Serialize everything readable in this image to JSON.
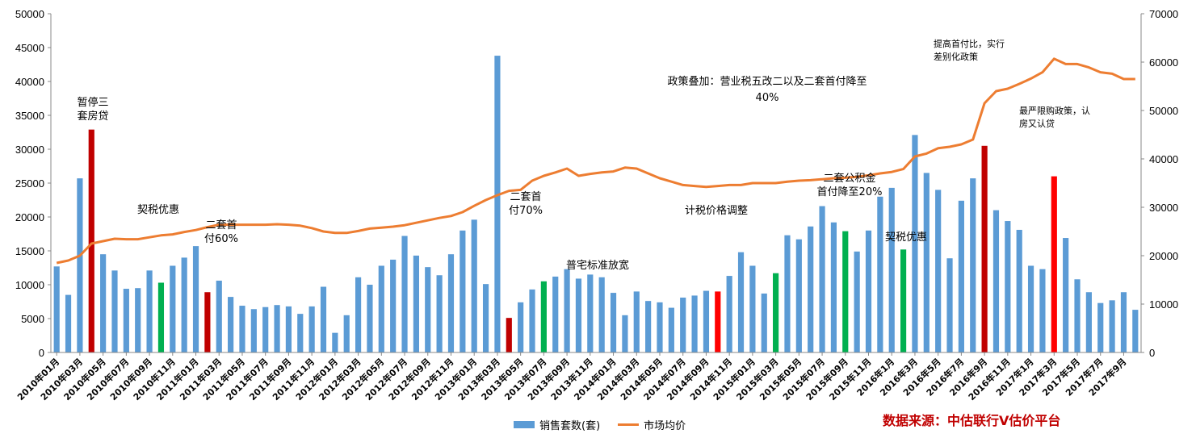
{
  "chart_data": {
    "type": "bar+line",
    "colors": {
      "bar": "#5b9bd5",
      "green": "#00b050",
      "red_dark": "#c00000",
      "red": "#ff0000",
      "line": "#ed7d31"
    },
    "y_left": {
      "min": 0,
      "max": 50000,
      "ticks": [
        "0",
        "5000",
        "10000",
        "15000",
        "20000",
        "25000",
        "30000",
        "35000",
        "40000",
        "45000",
        "50000"
      ]
    },
    "y_right": {
      "min": 0,
      "max": 70000,
      "ticks": [
        "0",
        "10000",
        "20000",
        "30000",
        "40000",
        "50000",
        "60000",
        "70000"
      ]
    },
    "x_tick_labels": [
      "2010年01月",
      "2010年03月",
      "2010年05月",
      "2010年07月",
      "2010年09月",
      "2010年11月",
      "2011年01月",
      "2011年03月",
      "2011年05月",
      "2011年07月",
      "2011年09月",
      "2011年11月",
      "2012年01月",
      "2012年03月",
      "2012年05月",
      "2012年07月",
      "2012年09月",
      "2012年11月",
      "2013年01月",
      "2013年03月",
      "2013年05月",
      "2013年07月",
      "2013年09月",
      "2013年11月",
      "2014年01月",
      "2014年03月",
      "2014年05月",
      "2014年07月",
      "2014年09月",
      "2014年11月",
      "2015年01月",
      "2015年03月",
      "2015年05月",
      "2015年07月",
      "2015年09月",
      "2015年11月",
      "2016年1月",
      "2016年3月",
      "2016年5月",
      "2016年7月",
      "2016年9月",
      "2016年11月",
      "2017年1月",
      "2017年3月",
      "2017年5月",
      "2017年7月",
      "2017年9月"
    ],
    "series": [
      {
        "name": "销售套数(套)",
        "axis": "left",
        "type": "bar",
        "values": [
          12700,
          8500,
          25700,
          32900,
          14500,
          12100,
          9400,
          9500,
          12100,
          10300,
          12800,
          14000,
          15700,
          8900,
          10600,
          8200,
          6900,
          6400,
          6700,
          7000,
          6800,
          5700,
          6800,
          9700,
          2900,
          5500,
          11100,
          10000,
          12800,
          13700,
          17200,
          14300,
          12600,
          11400,
          14500,
          18000,
          19600,
          10100,
          43800,
          5100,
          7400,
          9300,
          10500,
          11200,
          12300,
          10900,
          11500,
          11100,
          8800,
          5500,
          9000,
          7600,
          7400,
          6600,
          8100,
          8400,
          9100,
          9000,
          11300,
          14800,
          12800,
          8700,
          11700,
          17300,
          16700,
          18600,
          21600,
          19200,
          17900,
          14900,
          18000,
          23000,
          24300,
          15200,
          32100,
          26500,
          24000,
          13900,
          22400,
          25700,
          30500,
          21000,
          19400,
          18100,
          12800,
          12300,
          26000,
          16900,
          10800,
          8900,
          7300,
          7700,
          8900,
          6300
        ],
        "colors": {
          "3": "red_dark",
          "9": "green",
          "13": "red_dark",
          "39": "red_dark",
          "42": "green",
          "57": "red",
          "62": "green",
          "68": "green",
          "73": "green",
          "80": "red_dark",
          "86": "red"
        }
      },
      {
        "name": "市场均价",
        "axis": "right",
        "type": "line",
        "values": [
          18500,
          19000,
          20000,
          22500,
          23000,
          23500,
          23400,
          23400,
          23800,
          24200,
          24400,
          24900,
          25300,
          25900,
          26400,
          26400,
          26400,
          26400,
          26400,
          26500,
          26400,
          26200,
          25700,
          25000,
          24700,
          24700,
          25100,
          25600,
          25800,
          26000,
          26300,
          26800,
          27300,
          27800,
          28200,
          29000,
          30300,
          31500,
          32500,
          33400,
          33600,
          35500,
          36500,
          37200,
          38000,
          36500,
          36900,
          37200,
          37400,
          38200,
          38000,
          37000,
          36000,
          35300,
          34600,
          34400,
          34200,
          34400,
          34600,
          34600,
          35000,
          35000,
          35000,
          35300,
          35500,
          35600,
          35800,
          36000,
          36100,
          36300,
          36600,
          37000,
          37300,
          37900,
          40500,
          41100,
          42200,
          42500,
          43000,
          44000,
          51500,
          54000,
          54500,
          55500,
          56600,
          57900,
          60700,
          59600,
          59600,
          58900,
          57900,
          57600,
          56500,
          56500
        ]
      }
    ],
    "annotations": [
      {
        "lines": [
          "暂停三",
          "套房贷"
        ]
      },
      {
        "lines": [
          "契税优惠"
        ]
      },
      {
        "lines": [
          "二套首",
          "付60%"
        ]
      },
      {
        "lines": [
          "二套首",
          "付70%"
        ]
      },
      {
        "lines": [
          "普宅标准放宽"
        ]
      },
      {
        "lines": [
          "政策叠加：营业税五改二以及二套首付降至",
          "40%"
        ]
      },
      {
        "lines": [
          "计税价格调整"
        ]
      },
      {
        "lines": [
          "二套公积金",
          "首付降至20%"
        ]
      },
      {
        "lines": [
          "契税优惠"
        ]
      },
      {
        "lines": [
          "提高首付比，实行",
          "差别化政策"
        ]
      },
      {
        "lines": [
          "最严限购政策，认",
          "房又认贷"
        ]
      }
    ]
  },
  "legend": {
    "bar_label": "销售套数(套)",
    "line_label": "市场均价"
  },
  "source": "数据来源：中估联行V估价平台"
}
